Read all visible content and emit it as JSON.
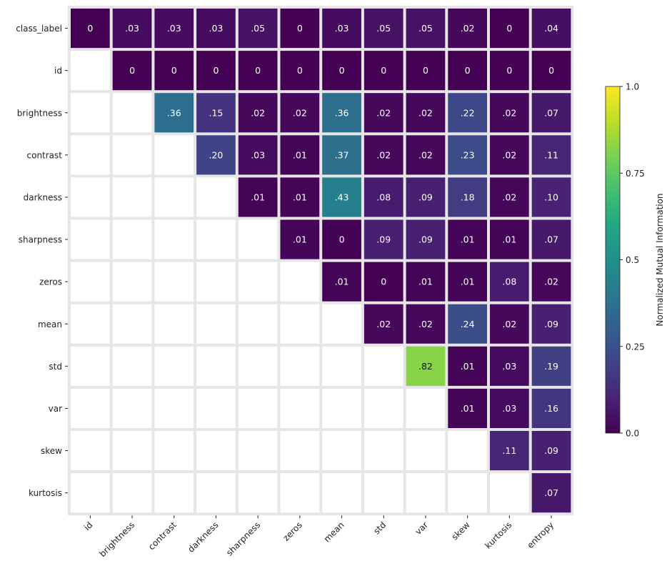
{
  "chart_data": {
    "type": "heatmap",
    "title": "",
    "xlabel": "",
    "ylabel": "",
    "rows": [
      "class_label",
      "id",
      "brightness",
      "contrast",
      "darkness",
      "sharpness",
      "zeros",
      "mean",
      "std",
      "var",
      "skew",
      "kurtosis"
    ],
    "columns": [
      "id",
      "brightness",
      "contrast",
      "darkness",
      "sharpness",
      "zeros",
      "mean",
      "std",
      "var",
      "skew",
      "kurtosis",
      "entropy"
    ],
    "values": [
      [
        0,
        0.03,
        0.03,
        0.03,
        0.05,
        0,
        0.03,
        0.05,
        0.05,
        0.02,
        0,
        0.04
      ],
      [
        null,
        0,
        0,
        0,
        0,
        0,
        0,
        0,
        0,
        0,
        0,
        0
      ],
      [
        null,
        null,
        0.36,
        0.15,
        0.02,
        0.02,
        0.36,
        0.02,
        0.02,
        0.22,
        0.02,
        0.07
      ],
      [
        null,
        null,
        null,
        0.2,
        0.03,
        0.01,
        0.37,
        0.02,
        0.02,
        0.23,
        0.02,
        0.11
      ],
      [
        null,
        null,
        null,
        null,
        0.01,
        0.01,
        0.43,
        0.08,
        0.09,
        0.18,
        0.02,
        0.1
      ],
      [
        null,
        null,
        null,
        null,
        null,
        0.01,
        0,
        0.09,
        0.09,
        0.01,
        0.01,
        0.07
      ],
      [
        null,
        null,
        null,
        null,
        null,
        null,
        0.01,
        0,
        0.01,
        0.01,
        0.08,
        0.02
      ],
      [
        null,
        null,
        null,
        null,
        null,
        null,
        null,
        0.02,
        0.02,
        0.24,
        0.02,
        0.09
      ],
      [
        null,
        null,
        null,
        null,
        null,
        null,
        null,
        null,
        0.82,
        0.01,
        0.03,
        0.19
      ],
      [
        null,
        null,
        null,
        null,
        null,
        null,
        null,
        null,
        null,
        0.01,
        0.03,
        0.16
      ],
      [
        null,
        null,
        null,
        null,
        null,
        null,
        null,
        null,
        null,
        null,
        0.11,
        0.09
      ],
      [
        null,
        null,
        null,
        null,
        null,
        null,
        null,
        null,
        null,
        null,
        null,
        0.07
      ]
    ],
    "cell_labels": [
      [
        "0",
        ".03",
        ".03",
        ".03",
        ".05",
        "0",
        ".03",
        ".05",
        ".05",
        ".02",
        "0",
        ".04"
      ],
      [
        "",
        "0",
        "0",
        "0",
        "0",
        "0",
        "0",
        "0",
        "0",
        "0",
        "0",
        "0"
      ],
      [
        "",
        "",
        ".36",
        ".15",
        ".02",
        ".02",
        ".36",
        ".02",
        ".02",
        ".22",
        ".02",
        ".07"
      ],
      [
        "",
        "",
        "",
        ".20",
        ".03",
        ".01",
        ".37",
        ".02",
        ".02",
        ".23",
        ".02",
        ".11"
      ],
      [
        "",
        "",
        "",
        "",
        ".01",
        ".01",
        ".43",
        ".08",
        ".09",
        ".18",
        ".02",
        ".10"
      ],
      [
        "",
        "",
        "",
        "",
        "",
        ".01",
        "0",
        ".09",
        ".09",
        ".01",
        ".01",
        ".07"
      ],
      [
        "",
        "",
        "",
        "",
        "",
        "",
        ".01",
        "0",
        ".01",
        ".01",
        ".08",
        ".02"
      ],
      [
        "",
        "",
        "",
        "",
        "",
        "",
        "",
        ".02",
        ".02",
        ".24",
        ".02",
        ".09"
      ],
      [
        "",
        "",
        "",
        "",
        "",
        "",
        "",
        "",
        ".82",
        ".01",
        ".03",
        ".19"
      ],
      [
        "",
        "",
        "",
        "",
        "",
        "",
        "",
        "",
        "",
        ".01",
        ".03",
        ".16"
      ],
      [
        "",
        "",
        "",
        "",
        "",
        "",
        "",
        "",
        "",
        "",
        ".11",
        ".09"
      ],
      [
        "",
        "",
        "",
        "",
        "",
        "",
        "",
        "",
        "",
        "",
        "",
        ".07"
      ]
    ],
    "colormap": "viridis",
    "vmin": 0,
    "vmax": 1,
    "grid_color": "#e6e6e6",
    "colorbar": {
      "label": "Normalized Mutual Information",
      "ticks": [
        0,
        0.25,
        0.5,
        0.75,
        1
      ],
      "tick_labels": [
        "0.0",
        "0.25",
        "0.5",
        "0.75",
        "1.0"
      ],
      "placement": "right"
    }
  }
}
